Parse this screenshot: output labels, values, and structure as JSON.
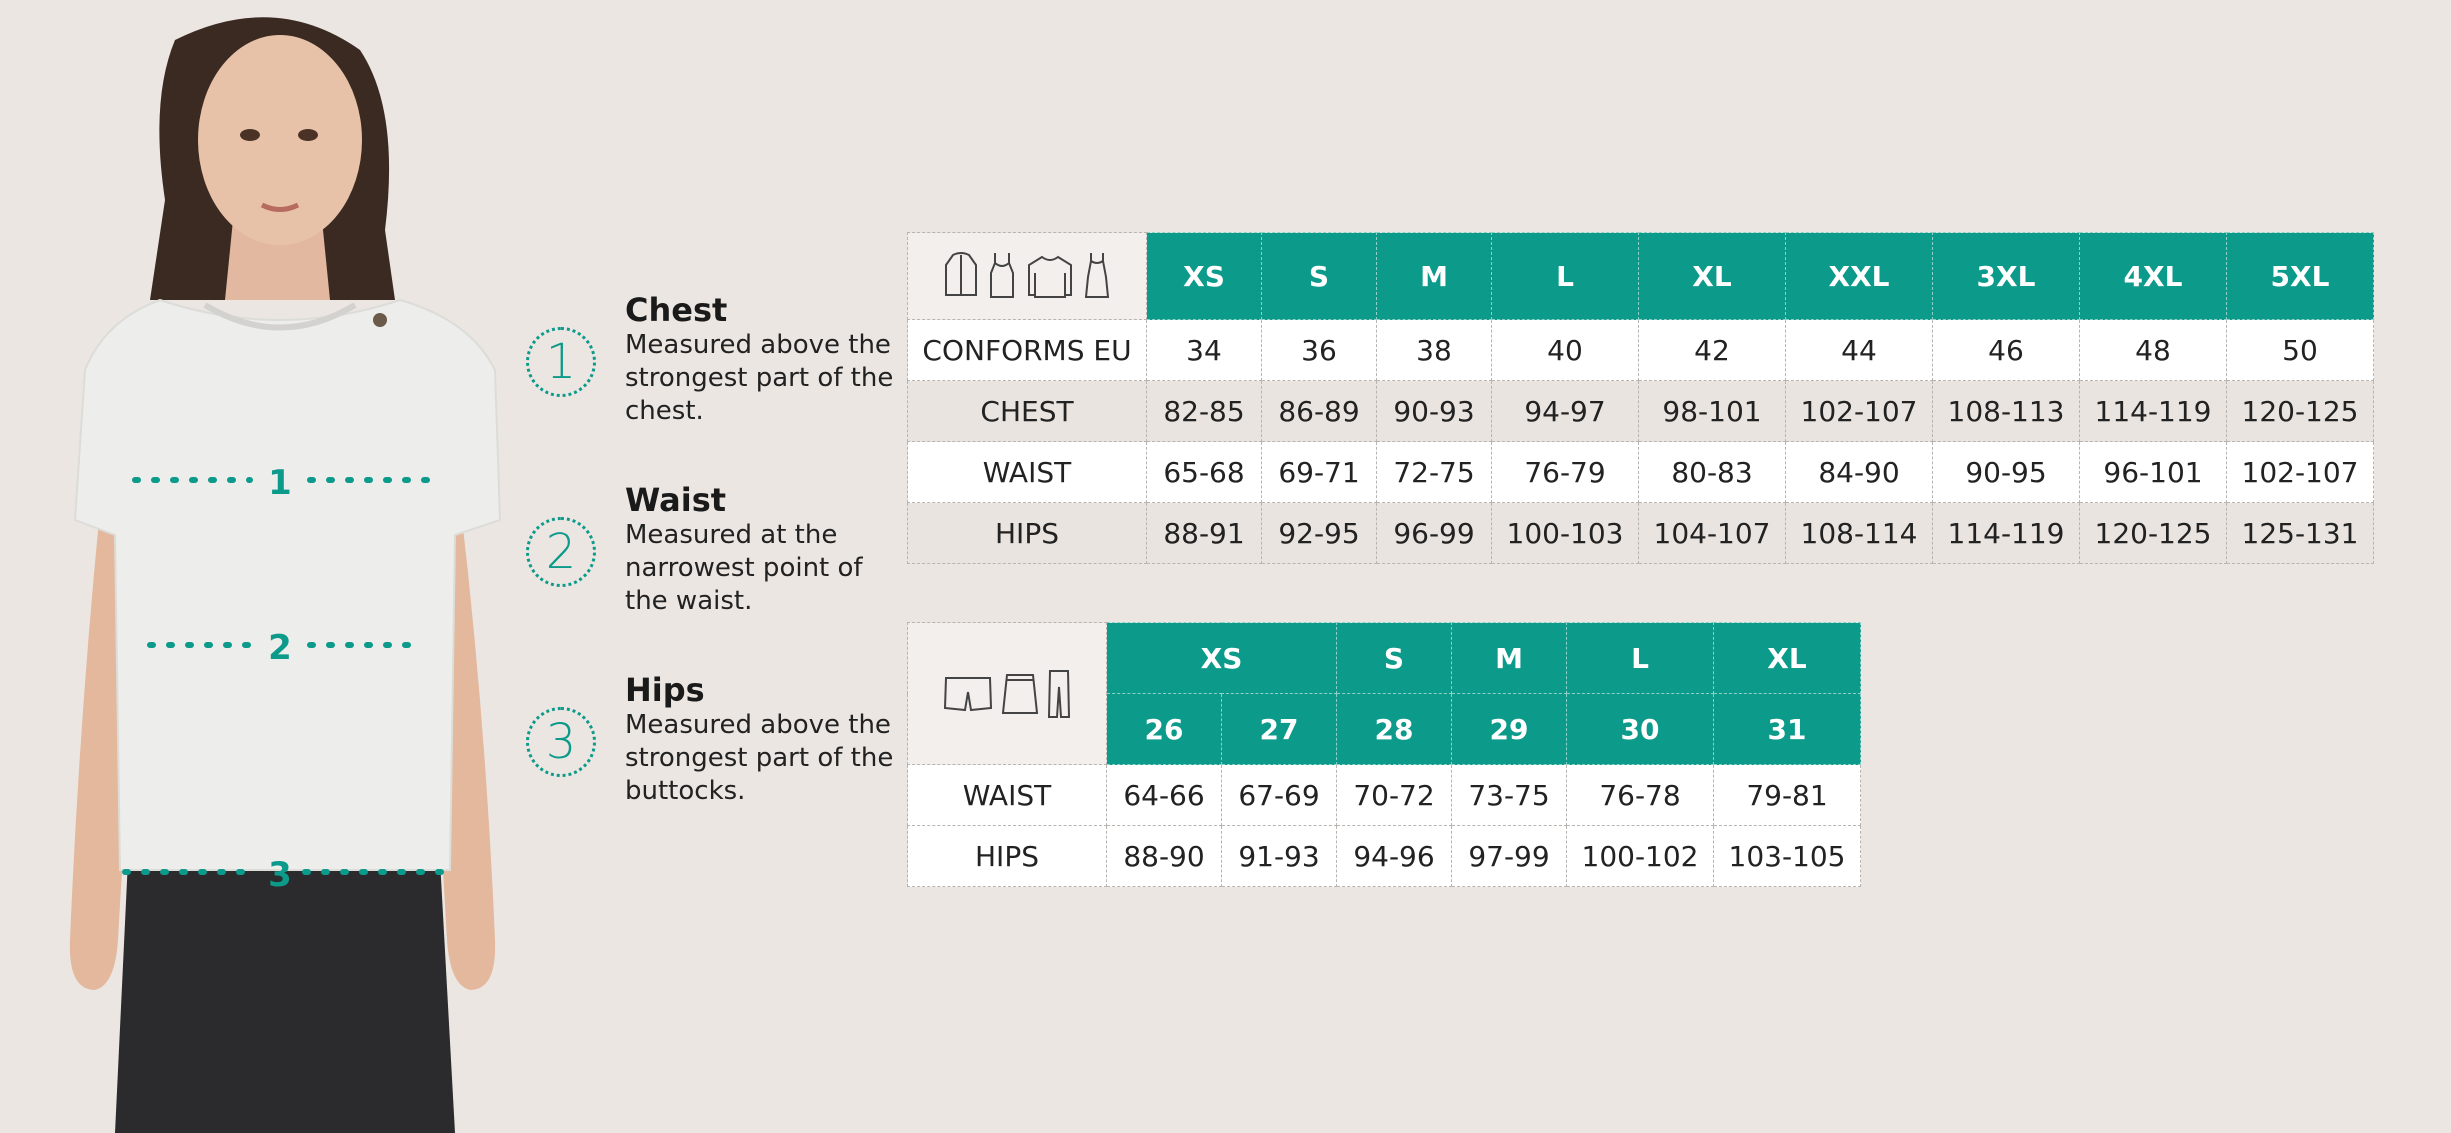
{
  "colors": {
    "accent": "#0c9a8a",
    "background": "#ebe6e2",
    "row_alt": "#e9e4e0"
  },
  "model": {
    "markers": [
      "1",
      "2",
      "3"
    ]
  },
  "legend": [
    {
      "number": "1",
      "title": "Chest",
      "text": "Measured above the strongest part of the chest."
    },
    {
      "number": "2",
      "title": "Waist",
      "text": "Measured at the narrowest point of the waist."
    },
    {
      "number": "3",
      "title": "Hips",
      "text": "Measured above the strongest part of the buttocks."
    }
  ],
  "tops_table": {
    "icons": [
      "jacket-icon",
      "tank-top-icon",
      "sweater-icon",
      "dress-icon"
    ],
    "sizes": [
      "XS",
      "S",
      "M",
      "L",
      "XL",
      "XXL",
      "3XL",
      "4XL",
      "5XL"
    ],
    "rows": [
      {
        "label": "CONFORMS EU",
        "values": [
          "34",
          "36",
          "38",
          "40",
          "42",
          "44",
          "46",
          "48",
          "50"
        ]
      },
      {
        "label": "CHEST",
        "values": [
          "82-85",
          "86-89",
          "90-93",
          "94-97",
          "98-101",
          "102-107",
          "108-113",
          "114-119",
          "120-125"
        ]
      },
      {
        "label": "WAIST",
        "values": [
          "65-68",
          "69-71",
          "72-75",
          "76-79",
          "80-83",
          "84-90",
          "90-95",
          "96-101",
          "102-107"
        ]
      },
      {
        "label": "HIPS",
        "values": [
          "88-91",
          "92-95",
          "96-99",
          "100-103",
          "104-107",
          "108-114",
          "114-119",
          "120-125",
          "125-131"
        ]
      }
    ]
  },
  "bottoms_table": {
    "icons": [
      "shorts-icon",
      "skirt-icon",
      "pants-icon"
    ],
    "sizes": [
      {
        "label": "XS",
        "span": 2
      },
      {
        "label": "S",
        "span": 1
      },
      {
        "label": "M",
        "span": 1
      },
      {
        "label": "L",
        "span": 1
      },
      {
        "label": "XL",
        "span": 1
      }
    ],
    "numbers": [
      "26",
      "27",
      "28",
      "29",
      "30",
      "31"
    ],
    "rows": [
      {
        "label": "WAIST",
        "values": [
          "64-66",
          "67-69",
          "70-72",
          "73-75",
          "76-78",
          "79-81"
        ]
      },
      {
        "label": "HIPS",
        "values": [
          "88-90",
          "91-93",
          "94-96",
          "97-99",
          "100-102",
          "103-105"
        ]
      }
    ]
  }
}
